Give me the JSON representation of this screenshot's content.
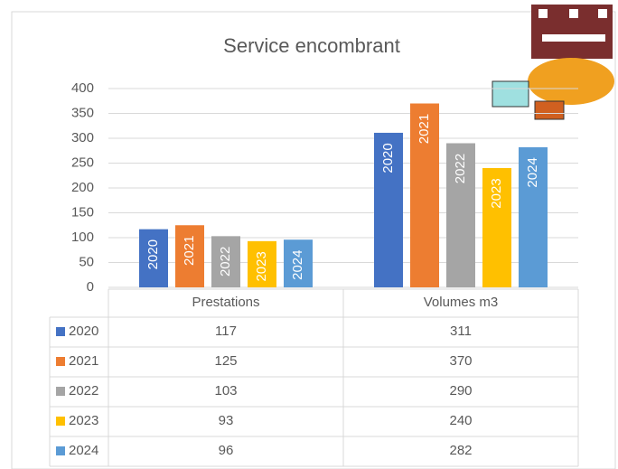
{
  "chart_data": {
    "type": "bar",
    "title": "Service encombrant",
    "categories": [
      "Prestations",
      "Volumes m3"
    ],
    "series": [
      {
        "name": "2020",
        "color": "#4472c4",
        "values": [
          117,
          311
        ]
      },
      {
        "name": "2021",
        "color": "#ed7d31",
        "values": [
          125,
          370
        ]
      },
      {
        "name": "2022",
        "color": "#a5a5a5",
        "values": [
          103,
          290
        ]
      },
      {
        "name": "2023",
        "color": "#ffc000",
        "values": [
          93,
          240
        ]
      },
      {
        "name": "2024",
        "color": "#5b9bd5",
        "values": [
          96,
          282
        ]
      }
    ],
    "ylim": [
      0,
      400
    ],
    "yticks": [
      0,
      50,
      100,
      150,
      200,
      250,
      300,
      350,
      400
    ],
    "grid": true
  }
}
